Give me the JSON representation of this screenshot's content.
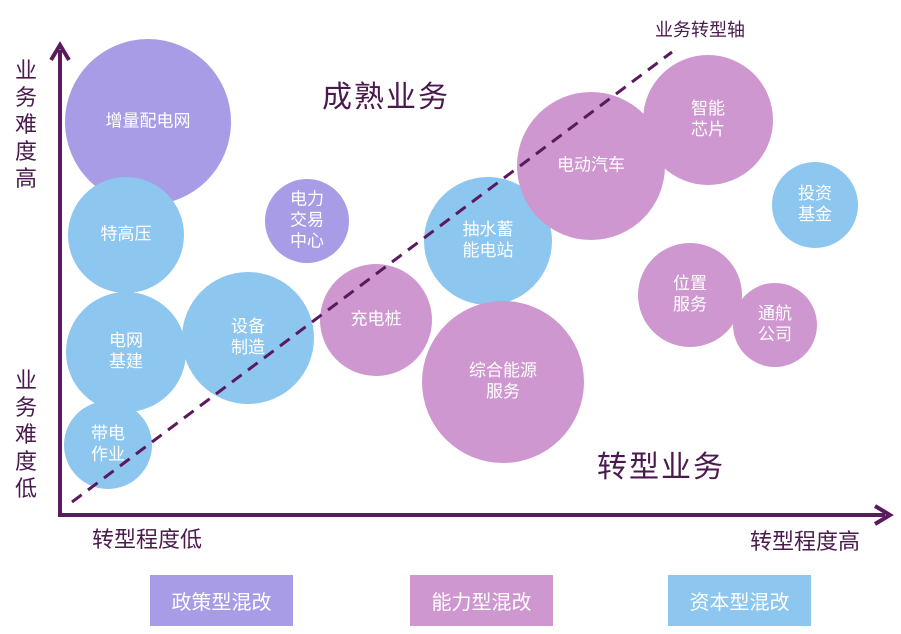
{
  "colors": {
    "policy": "#a89ce6",
    "capability": "#cf97cf",
    "capital": "#8dc6ef",
    "axis": "#5a1a5e"
  },
  "y_axis": {
    "top_label": "业务难度高",
    "bottom_label": "业务难度低"
  },
  "x_axis": {
    "left_label": "转型程度低",
    "right_label": "转型程度高"
  },
  "quadrants": {
    "mature": "成熟业务",
    "transform": "转型业务"
  },
  "transform_axis_label": "业务转型轴",
  "bubbles": [
    {
      "label": "增量配电网",
      "type": "policy"
    },
    {
      "label": "特高压",
      "type": "capital"
    },
    {
      "label": "电力\n交易\n中心",
      "type": "policy"
    },
    {
      "label": "电网\n基建",
      "type": "capital"
    },
    {
      "label": "带电\n作业",
      "type": "capital"
    },
    {
      "label": "设备\n制造",
      "type": "capital"
    },
    {
      "label": "充电桩",
      "type": "capability"
    },
    {
      "label": "抽水蓄\n能电站",
      "type": "capital"
    },
    {
      "label": "综合能源\n服务",
      "type": "capability"
    },
    {
      "label": "电动汽车",
      "type": "capability"
    },
    {
      "label": "智能\n芯片",
      "type": "capability"
    },
    {
      "label": "投资\n基金",
      "type": "capital"
    },
    {
      "label": "位置\n服务",
      "type": "capability"
    },
    {
      "label": "通航\n公司",
      "type": "capability"
    }
  ],
  "legend": [
    {
      "label": "政策型混改",
      "type": "policy"
    },
    {
      "label": "能力型混改",
      "type": "capability"
    },
    {
      "label": "资本型混改",
      "type": "capital"
    }
  ]
}
